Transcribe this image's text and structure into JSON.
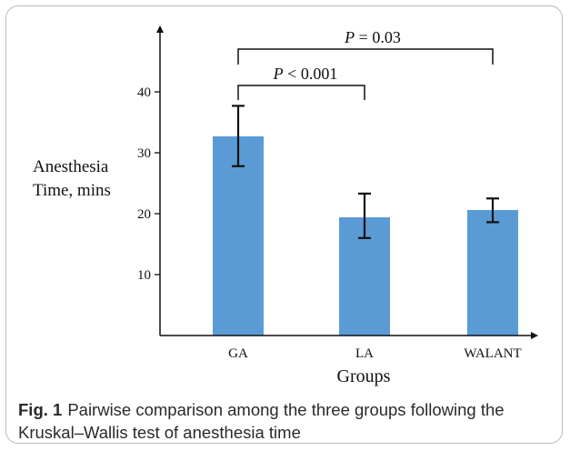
{
  "chart_data": {
    "type": "bar",
    "categories": [
      "GA",
      "LA",
      "WALANT"
    ],
    "values": [
      32.7,
      19.4,
      20.6
    ],
    "error_low": [
      27.8,
      16.0,
      18.6
    ],
    "error_high": [
      37.7,
      23.3,
      22.5
    ],
    "ylabel_lines": [
      "Anesthesia",
      "Time, mins"
    ],
    "xlabel": "Groups",
    "yticks": [
      10,
      20,
      30,
      40
    ],
    "ylim": [
      0,
      50
    ],
    "bar_color": "#5b9bd5",
    "grid": false,
    "annotations": [
      {
        "from": "GA",
        "to": "LA",
        "italic": "P",
        "rest": " < 0.001"
      },
      {
        "from": "GA",
        "to": "WALANT",
        "italic": "P",
        "rest": " = 0.03"
      }
    ]
  },
  "caption": {
    "label": "Fig. 1",
    "text": "Pairwise comparison among the three groups following the Kruskal–Wallis test of anesthesia time"
  }
}
